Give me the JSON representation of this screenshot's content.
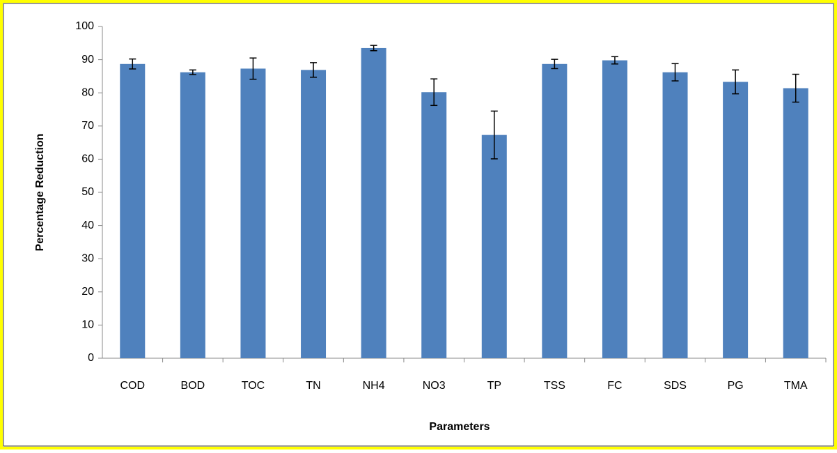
{
  "chart_data": {
    "type": "bar",
    "y_label": "Percentage Reduction",
    "x_label": "Parameters",
    "categories": [
      "COD",
      "BOD",
      "TOC",
      "TN",
      "NH4",
      "NO3",
      "TP",
      "TSS",
      "FC",
      "SDS",
      "PG",
      "TMA"
    ],
    "values": [
      88.7,
      86.2,
      87.3,
      86.9,
      93.5,
      80.2,
      67.3,
      88.7,
      89.8,
      86.2,
      83.3,
      81.4
    ],
    "errors": [
      1.5,
      0.7,
      3.2,
      2.2,
      0.8,
      4.0,
      7.2,
      1.4,
      1.1,
      2.6,
      3.6,
      4.2
    ],
    "color": "#4f81bd",
    "ylim": [
      0,
      100
    ],
    "yticks": [
      0,
      10,
      20,
      30,
      40,
      50,
      60,
      70,
      80,
      90,
      100
    ],
    "grid": false
  }
}
